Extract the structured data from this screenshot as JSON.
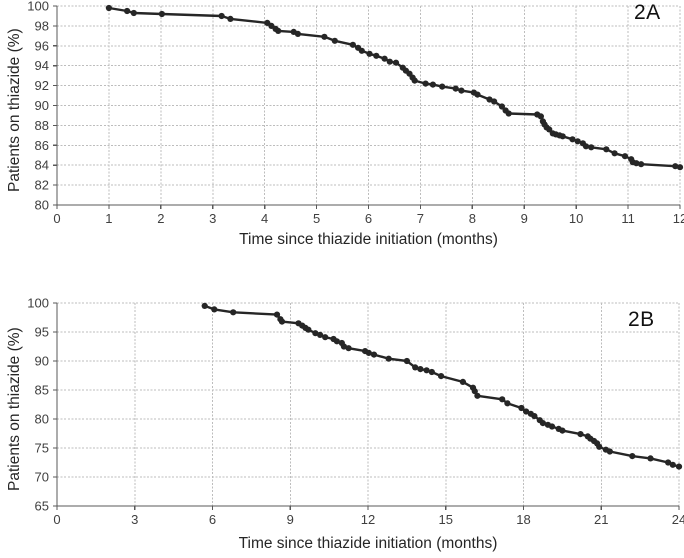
{
  "figure": {
    "background": "#ffffff",
    "line_color": "#262626",
    "grid_color": "#bdbdbd",
    "axis_color": "#595959",
    "tick_text_color": "#3f3f3f"
  },
  "chart_data": [
    {
      "type": "line",
      "panel_label": "2A",
      "xlabel": "Time since thiazide initiation (months)",
      "ylabel": "Patients on thiazide (%)",
      "xlim": [
        0,
        12
      ],
      "ylim": [
        80,
        100
      ],
      "xticks": [
        0,
        1,
        2,
        3,
        4,
        5,
        6,
        7,
        8,
        9,
        10,
        11,
        12
      ],
      "yticks": [
        80,
        82,
        84,
        86,
        88,
        90,
        92,
        94,
        96,
        98,
        100
      ],
      "grid": true,
      "legend": "none",
      "marker": "circle",
      "series": [
        {
          "name": "patients-on-thiazide",
          "points": [
            [
              1.0,
              99.8
            ],
            [
              1.35,
              99.5
            ],
            [
              1.48,
              99.3
            ],
            [
              2.02,
              99.2
            ],
            [
              3.17,
              99.0
            ],
            [
              3.34,
              98.7
            ],
            [
              4.05,
              98.3
            ],
            [
              4.13,
              98.0
            ],
            [
              4.21,
              97.7
            ],
            [
              4.26,
              97.5
            ],
            [
              4.56,
              97.4
            ],
            [
              4.64,
              97.2
            ],
            [
              5.15,
              96.9
            ],
            [
              5.35,
              96.5
            ],
            [
              5.7,
              96.1
            ],
            [
              5.8,
              95.8
            ],
            [
              5.87,
              95.5
            ],
            [
              6.02,
              95.2
            ],
            [
              6.15,
              95.0
            ],
            [
              6.31,
              94.7
            ],
            [
              6.41,
              94.4
            ],
            [
              6.53,
              94.3
            ],
            [
              6.66,
              93.8
            ],
            [
              6.72,
              93.5
            ],
            [
              6.79,
              93.2
            ],
            [
              6.85,
              92.8
            ],
            [
              6.89,
              92.5
            ],
            [
              7.1,
              92.2
            ],
            [
              7.24,
              92.1
            ],
            [
              7.42,
              91.9
            ],
            [
              7.68,
              91.7
            ],
            [
              7.79,
              91.5
            ],
            [
              8.03,
              91.3
            ],
            [
              8.1,
              91.1
            ],
            [
              8.33,
              90.6
            ],
            [
              8.42,
              90.4
            ],
            [
              8.57,
              89.9
            ],
            [
              8.64,
              89.5
            ],
            [
              8.7,
              89.2
            ],
            [
              9.25,
              89.1
            ],
            [
              9.32,
              88.9
            ],
            [
              9.36,
              88.4
            ],
            [
              9.39,
              88.1
            ],
            [
              9.43,
              87.8
            ],
            [
              9.48,
              87.6
            ],
            [
              9.55,
              87.2
            ],
            [
              9.61,
              87.1
            ],
            [
              9.68,
              87.0
            ],
            [
              9.74,
              86.9
            ],
            [
              9.93,
              86.6
            ],
            [
              10.03,
              86.4
            ],
            [
              10.13,
              86.2
            ],
            [
              10.19,
              85.9
            ],
            [
              10.29,
              85.8
            ],
            [
              10.58,
              85.6
            ],
            [
              10.74,
              85.2
            ],
            [
              10.94,
              84.9
            ],
            [
              11.06,
              84.6
            ],
            [
              11.09,
              84.3
            ],
            [
              11.16,
              84.2
            ],
            [
              11.25,
              84.1
            ],
            [
              11.91,
              83.9
            ],
            [
              12.0,
              83.8
            ]
          ]
        }
      ]
    },
    {
      "type": "line",
      "panel_label": "2B",
      "xlabel": "Time since thiazide initiation (months)",
      "ylabel": "Patients on thiazide (%)",
      "xlim": [
        0,
        24
      ],
      "ylim": [
        65,
        100
      ],
      "xticks": [
        0,
        3,
        6,
        9,
        12,
        15,
        18,
        21,
        24
      ],
      "yticks": [
        65,
        70,
        75,
        80,
        85,
        90,
        95,
        100
      ],
      "grid": true,
      "legend": "none",
      "marker": "circle",
      "series": [
        {
          "name": "patients-on-thiazide",
          "points": [
            [
              5.7,
              99.5
            ],
            [
              6.07,
              98.9
            ],
            [
              6.8,
              98.4
            ],
            [
              8.49,
              98.0
            ],
            [
              8.62,
              97.2
            ],
            [
              8.68,
              96.8
            ],
            [
              9.32,
              96.5
            ],
            [
              9.46,
              96.1
            ],
            [
              9.59,
              95.7
            ],
            [
              9.7,
              95.4
            ],
            [
              9.97,
              94.8
            ],
            [
              10.15,
              94.5
            ],
            [
              10.35,
              94.1
            ],
            [
              10.67,
              93.8
            ],
            [
              10.8,
              93.4
            ],
            [
              10.99,
              93.1
            ],
            [
              11.07,
              92.5
            ],
            [
              11.25,
              92.2
            ],
            [
              11.89,
              91.7
            ],
            [
              12.03,
              91.4
            ],
            [
              12.23,
              91.1
            ],
            [
              12.8,
              90.4
            ],
            [
              13.5,
              90.0
            ],
            [
              13.82,
              88.9
            ],
            [
              14.02,
              88.6
            ],
            [
              14.26,
              88.4
            ],
            [
              14.46,
              88.1
            ],
            [
              14.82,
              87.4
            ],
            [
              15.66,
              86.4
            ],
            [
              16.05,
              85.4
            ],
            [
              16.12,
              84.8
            ],
            [
              16.22,
              84.0
            ],
            [
              17.18,
              83.4
            ],
            [
              17.38,
              82.7
            ],
            [
              17.92,
              81.9
            ],
            [
              18.1,
              81.3
            ],
            [
              18.28,
              80.9
            ],
            [
              18.42,
              80.5
            ],
            [
              18.63,
              79.8
            ],
            [
              18.75,
              79.3
            ],
            [
              18.94,
              79.0
            ],
            [
              19.1,
              78.7
            ],
            [
              19.36,
              78.3
            ],
            [
              19.5,
              78.0
            ],
            [
              20.2,
              77.4
            ],
            [
              20.48,
              77.0
            ],
            [
              20.58,
              76.6
            ],
            [
              20.72,
              76.2
            ],
            [
              20.84,
              75.8
            ],
            [
              20.92,
              75.2
            ],
            [
              21.18,
              74.7
            ],
            [
              21.33,
              74.4
            ],
            [
              22.2,
              73.6
            ],
            [
              22.9,
              73.2
            ],
            [
              23.58,
              72.5
            ],
            [
              23.76,
              72.1
            ],
            [
              24.0,
              71.8
            ]
          ]
        }
      ]
    }
  ]
}
